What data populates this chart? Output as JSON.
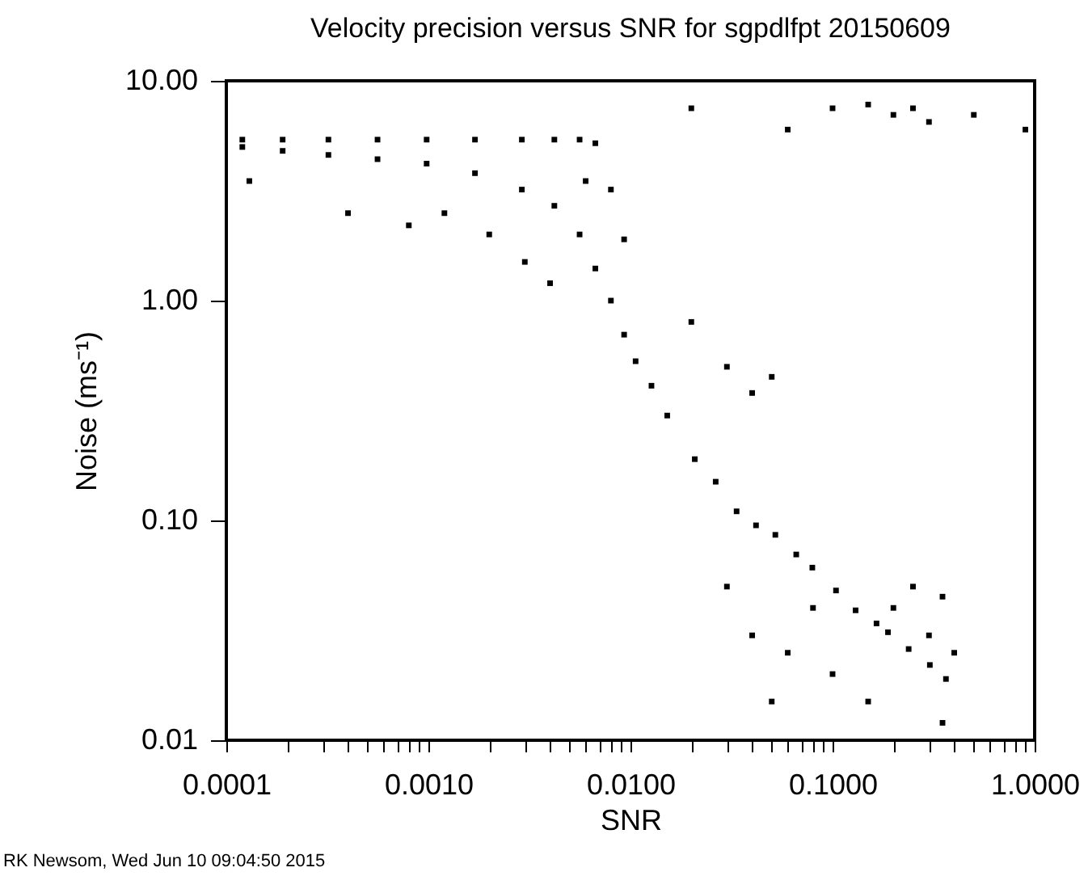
{
  "chart_data": {
    "type": "scatter",
    "title": "Velocity precision versus SNR for sgpdlfpt 20150609",
    "xlabel": "SNR",
    "ylabel": "Noise (ms⁻¹)",
    "annotations": [
      "RK Newsom, Wed Jun 10 09:04:50 2015"
    ],
    "log": "xy",
    "grid": false,
    "marker": "square",
    "xlim": [
      0.0001,
      1
    ],
    "ylim": [
      0.01,
      10
    ],
    "xticks": [
      {
        "value": 0.0001,
        "label": "0.0001"
      },
      {
        "value": 0.0002,
        "label": null
      },
      {
        "value": 0.0003,
        "label": null
      },
      {
        "value": 0.0004,
        "label": null
      },
      {
        "value": 0.0005,
        "label": null
      },
      {
        "value": 0.0006,
        "label": null
      },
      {
        "value": 0.0007,
        "label": null
      },
      {
        "value": 0.0008,
        "label": null
      },
      {
        "value": 0.0009,
        "label": null
      },
      {
        "value": 0.001,
        "label": "0.0010"
      },
      {
        "value": 0.002,
        "label": null
      },
      {
        "value": 0.003,
        "label": null
      },
      {
        "value": 0.004,
        "label": null
      },
      {
        "value": 0.005,
        "label": null
      },
      {
        "value": 0.006,
        "label": null
      },
      {
        "value": 0.007,
        "label": null
      },
      {
        "value": 0.008,
        "label": null
      },
      {
        "value": 0.009,
        "label": null
      },
      {
        "value": 0.01,
        "label": "0.0100"
      },
      {
        "value": 0.02,
        "label": null
      },
      {
        "value": 0.03,
        "label": null
      },
      {
        "value": 0.04,
        "label": null
      },
      {
        "value": 0.05,
        "label": null
      },
      {
        "value": 0.06,
        "label": null
      },
      {
        "value": 0.07,
        "label": null
      },
      {
        "value": 0.08,
        "label": null
      },
      {
        "value": 0.09,
        "label": null
      },
      {
        "value": 0.1,
        "label": "0.1000"
      },
      {
        "value": 0.2,
        "label": null
      },
      {
        "value": 0.3,
        "label": null
      },
      {
        "value": 0.4,
        "label": null
      },
      {
        "value": 0.5,
        "label": null
      },
      {
        "value": 0.6,
        "label": null
      },
      {
        "value": 0.7,
        "label": null
      },
      {
        "value": 0.8,
        "label": null
      },
      {
        "value": 0.9,
        "label": null
      },
      {
        "value": 1,
        "label": "1.0000"
      }
    ],
    "yticks": [
      {
        "value": 0.01,
        "label": "0.01"
      },
      {
        "value": 0.1,
        "label": "0.10"
      },
      {
        "value": 1,
        "label": "1.00"
      },
      {
        "value": 10,
        "label": "10.00"
      }
    ],
    "series": [
      {
        "color": "#000000",
        "x": [
          0.00012,
          0.00012,
          0.00019,
          0.00019,
          0.00032,
          0.00032,
          0.00056,
          0.00056,
          0.00098,
          0.00098,
          0.0017,
          0.0017,
          0.0029,
          0.0029,
          0.0042,
          0.0042,
          0.0056,
          0.0056,
          0.0067,
          0.0067,
          0.008,
          0.008,
          0.0093,
          0.0093,
          0.0106,
          0.0127,
          0.0152,
          0.0208,
          0.0264,
          0.0335,
          0.0418,
          0.0521,
          0.0661,
          0.0794,
          0.104,
          0.13,
          0.165,
          0.188,
          0.238,
          0.303,
          0.364,
          0.03,
          0.04,
          0.05,
          0.06,
          0.08,
          0.1,
          0.15,
          0.2,
          0.25,
          0.3,
          0.35,
          0.4,
          0.35,
          0.02,
          0.1,
          0.15,
          0.2,
          0.25,
          0.3,
          0.5,
          0.9,
          0.06,
          0.00013,
          0.0004,
          0.0008,
          0.0012,
          0.002,
          0.003,
          0.004,
          0.03,
          0.05,
          0.04,
          0.02,
          0.006
        ],
        "values": [
          5.4,
          5.0,
          5.4,
          4.8,
          5.4,
          4.6,
          5.4,
          4.4,
          5.4,
          4.2,
          5.4,
          3.8,
          5.4,
          3.2,
          5.4,
          2.7,
          5.4,
          2.0,
          5.2,
          1.4,
          3.2,
          1.0,
          1.9,
          0.7,
          0.53,
          0.41,
          0.3,
          0.19,
          0.15,
          0.11,
          0.095,
          0.086,
          0.07,
          0.061,
          0.048,
          0.039,
          0.034,
          0.031,
          0.026,
          0.022,
          0.019,
          0.05,
          0.03,
          0.015,
          0.025,
          0.04,
          0.02,
          0.015,
          0.04,
          0.05,
          0.03,
          0.012,
          0.025,
          0.045,
          7.5,
          7.5,
          7.8,
          7.0,
          7.5,
          6.5,
          7.0,
          6.0,
          6.0,
          3.5,
          2.5,
          2.2,
          2.5,
          2.0,
          1.5,
          1.2,
          0.5,
          0.45,
          0.38,
          0.8,
          3.5
        ]
      }
    ]
  }
}
